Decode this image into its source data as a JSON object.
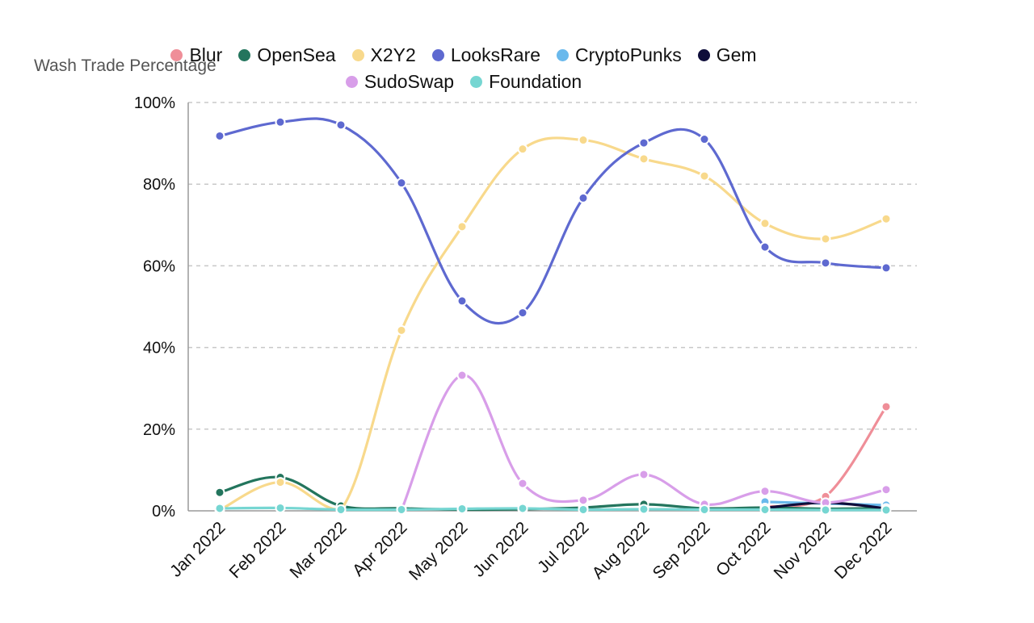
{
  "chart_data": {
    "type": "line",
    "ylabel": "Wash Trade Percentage",
    "ylim": [
      0,
      100
    ],
    "yticks": [
      "0%",
      "20%",
      "40%",
      "60%",
      "80%",
      "100%"
    ],
    "ytick_values": [
      0,
      20,
      40,
      60,
      80,
      100
    ],
    "categories": [
      "Jan 2022",
      "Feb 2022",
      "Mar 2022",
      "Apr 2022",
      "May 2022",
      "Jun 2022",
      "Jul 2022",
      "Aug 2022",
      "Sep 2022",
      "Oct 2022",
      "Nov 2022",
      "Dec 2022"
    ],
    "grid": "horizontal dashed",
    "legend_placement": "top-center",
    "series": [
      {
        "name": "Blur",
        "color": "#ef8e98",
        "values": [
          null,
          null,
          null,
          null,
          null,
          null,
          null,
          null,
          null,
          1.0,
          3.5,
          25.5
        ]
      },
      {
        "name": "OpenSea",
        "color": "#23755d",
        "values": [
          4.5,
          8.2,
          1.2,
          0.6,
          0.3,
          0.4,
          0.8,
          1.6,
          0.6,
          0.8,
          0.5,
          0.7
        ]
      },
      {
        "name": "X2Y2",
        "color": "#f8d98c",
        "values": [
          0.2,
          7.0,
          0.3,
          44.2,
          69.6,
          88.6,
          90.8,
          86.2,
          82.0,
          70.4,
          66.6,
          71.5
        ]
      },
      {
        "name": "LooksRare",
        "color": "#5e69d0",
        "values": [
          91.8,
          95.2,
          94.5,
          80.3,
          51.4,
          48.5,
          76.6,
          90.1,
          91.0,
          64.6,
          60.7,
          59.5
        ]
      },
      {
        "name": "CryptoPunks",
        "color": "#6ab9ec",
        "values": [
          null,
          null,
          null,
          null,
          null,
          null,
          null,
          null,
          null,
          2.2,
          1.8,
          1.4
        ]
      },
      {
        "name": "Gem",
        "color": "#0e0d3a",
        "values": [
          null,
          null,
          null,
          null,
          null,
          null,
          null,
          null,
          null,
          0.7,
          2.0,
          0.6
        ]
      },
      {
        "name": "SudoSwap",
        "color": "#d89ee9",
        "values": [
          null,
          null,
          null,
          0.2,
          33.2,
          6.7,
          2.6,
          8.9,
          1.6,
          4.8,
          2.0,
          5.2
        ]
      },
      {
        "name": "Foundation",
        "color": "#76d6d2",
        "values": [
          0.6,
          0.7,
          0.3,
          0.3,
          0.5,
          0.6,
          0.3,
          0.4,
          0.3,
          0.3,
          0.2,
          0.2
        ]
      }
    ]
  }
}
